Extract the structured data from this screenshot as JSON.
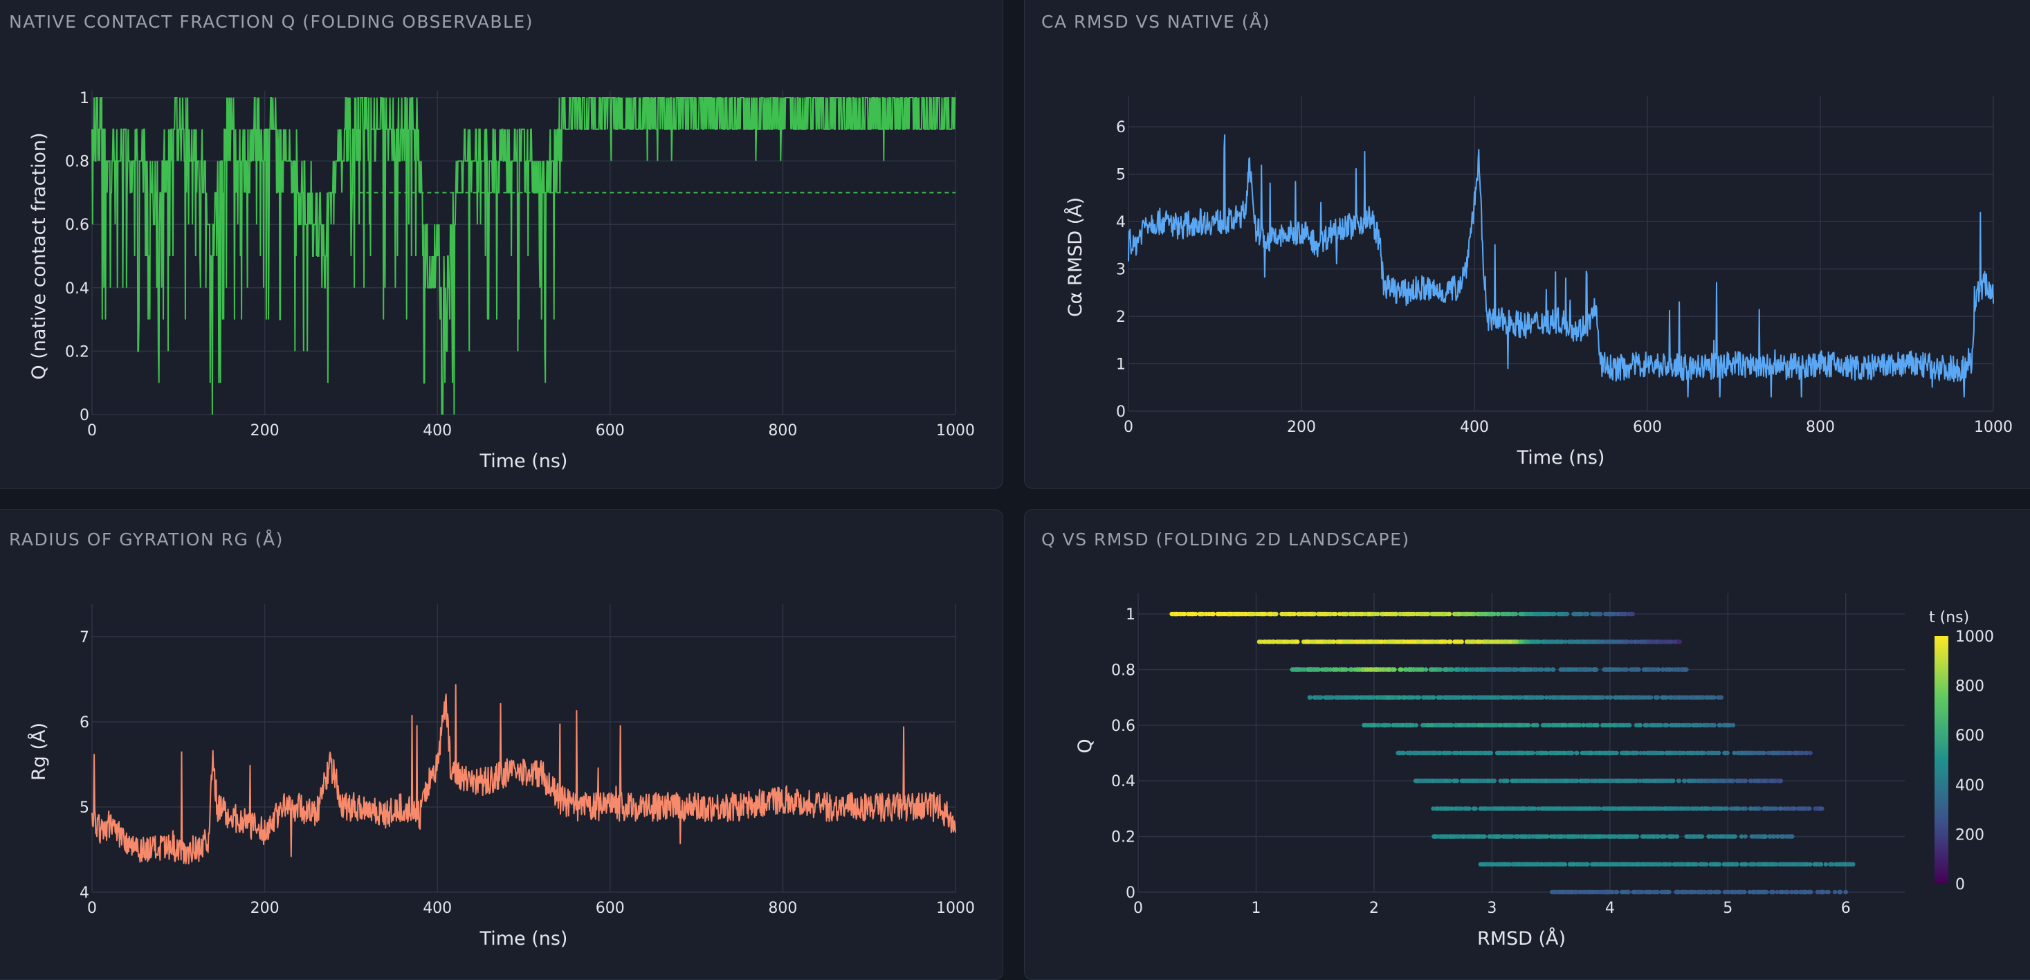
{
  "panels": {
    "q": {
      "title": "NATIVE CONTACT FRACTION Q (FOLDING OBSERVABLE)"
    },
    "rmsd": {
      "title": "CA RMSD VS NATIVE (Å)"
    },
    "rg": {
      "title": "RADIUS OF GYRATION RG (Å)"
    },
    "land": {
      "title": "Q VS RMSD (FOLDING 2D LANDSCAPE)"
    }
  },
  "colors": {
    "background": "#131720",
    "panel": "#1b1f2b",
    "q_series": "#3fbf4f",
    "rmsd_series": "#5aa8f5",
    "rg_series": "#f88a6c"
  },
  "chart_data": [
    {
      "type": "line",
      "panel": "q",
      "xlabel": "Time (ns)",
      "ylabel": "Q (native contact fraction)",
      "xlim": [
        0,
        1000
      ],
      "ylim": [
        0,
        1
      ],
      "xticks": [
        0,
        200,
        400,
        600,
        800,
        1000
      ],
      "yticks": [
        0,
        0.2,
        0.4,
        0.6,
        0.8,
        1
      ],
      "ytick_labels": [
        "0",
        "0.2",
        "0.4",
        "0.6",
        "0.8",
        "1"
      ],
      "grid": true,
      "threshold": 0.7,
      "x": [
        0,
        25,
        50,
        75,
        100,
        125,
        140,
        155,
        175,
        200,
        225,
        250,
        270,
        285,
        300,
        325,
        350,
        375,
        390,
        400,
        410,
        425,
        450,
        475,
        500,
        525,
        545,
        575,
        600,
        650,
        700,
        750,
        800,
        850,
        900,
        950,
        1000
      ],
      "values": [
        0.9,
        0.8,
        0.8,
        0.7,
        0.9,
        0.8,
        0.5,
        0.9,
        0.8,
        0.9,
        0.8,
        0.7,
        0.5,
        0.8,
        0.9,
        0.9,
        0.9,
        0.9,
        0.4,
        0.5,
        0.3,
        0.8,
        0.8,
        0.8,
        0.8,
        0.7,
        0.9,
        0.9,
        0.9,
        0.9,
        0.9,
        0.9,
        0.9,
        0.9,
        0.9,
        0.9,
        0.9
      ]
    },
    {
      "type": "line",
      "panel": "rmsd",
      "xlabel": "Time (ns)",
      "ylabel": "Cα RMSD (Å)",
      "xlim": [
        0,
        1000
      ],
      "ylim": [
        0,
        6.5
      ],
      "xticks": [
        0,
        200,
        400,
        600,
        800,
        1000
      ],
      "yticks": [
        0,
        1,
        2,
        3,
        4,
        5,
        6
      ],
      "grid": true,
      "x": [
        0,
        5,
        20,
        40,
        60,
        80,
        100,
        120,
        135,
        140,
        145,
        160,
        180,
        200,
        220,
        240,
        260,
        280,
        290,
        295,
        300,
        320,
        340,
        360,
        380,
        390,
        400,
        405,
        410,
        415,
        420,
        440,
        460,
        480,
        500,
        520,
        535,
        540,
        545,
        560,
        600,
        650,
        700,
        750,
        800,
        850,
        900,
        950,
        970,
        975,
        980,
        990,
        1000
      ],
      "values": [
        3.8,
        3.4,
        4.0,
        4.0,
        3.9,
        4.0,
        4.0,
        4.0,
        4.2,
        5.4,
        3.9,
        3.6,
        3.7,
        3.8,
        3.5,
        3.9,
        3.9,
        4.1,
        3.6,
        2.7,
        2.6,
        2.5,
        2.6,
        2.5,
        2.6,
        3.0,
        4.4,
        5.3,
        3.2,
        2.0,
        1.9,
        1.9,
        1.8,
        1.9,
        1.9,
        1.7,
        1.9,
        2.3,
        1.0,
        0.9,
        1.0,
        0.9,
        1.0,
        0.9,
        1.0,
        0.9,
        1.0,
        0.9,
        0.9,
        1.1,
        2.4,
        2.7,
        2.5
      ]
    },
    {
      "type": "line",
      "panel": "rg",
      "xlabel": "Time (ns)",
      "ylabel": "Rg (Å)",
      "xlim": [
        0,
        1000
      ],
      "ylim": [
        4,
        7.3
      ],
      "xticks": [
        0,
        200,
        400,
        600,
        800,
        1000
      ],
      "yticks": [
        4,
        5,
        6,
        7
      ],
      "grid": true,
      "x": [
        0,
        10,
        20,
        40,
        60,
        80,
        100,
        120,
        135,
        140,
        145,
        160,
        180,
        200,
        220,
        240,
        260,
        275,
        280,
        290,
        300,
        320,
        340,
        360,
        380,
        390,
        400,
        410,
        415,
        420,
        440,
        460,
        480,
        500,
        520,
        540,
        560,
        600,
        650,
        700,
        750,
        800,
        850,
        900,
        950,
        980,
        1000
      ],
      "values": [
        4.9,
        4.7,
        4.8,
        4.6,
        4.5,
        4.5,
        4.5,
        4.5,
        4.6,
        5.6,
        5.0,
        4.9,
        4.8,
        4.7,
        5.0,
        5.0,
        4.9,
        5.5,
        5.4,
        5.0,
        5.0,
        5.0,
        4.9,
        5.0,
        4.9,
        5.3,
        5.5,
        6.3,
        5.5,
        5.4,
        5.3,
        5.3,
        5.4,
        5.4,
        5.4,
        5.1,
        5.0,
        5.0,
        5.0,
        5.0,
        5.0,
        5.1,
        5.0,
        5.0,
        5.0,
        5.0,
        4.8
      ]
    },
    {
      "type": "scatter",
      "panel": "land",
      "xlabel": "RMSD (Å)",
      "ylabel": "Q",
      "xlim": [
        0,
        6.5
      ],
      "ylim": [
        0,
        1.05
      ],
      "xticks": [
        0,
        1,
        2,
        3,
        4,
        5,
        6
      ],
      "yticks": [
        0,
        0.2,
        0.4,
        0.6,
        0.8,
        1
      ],
      "ytick_labels": [
        "0",
        "0.2",
        "0.4",
        "0.6",
        "0.8",
        "1"
      ],
      "grid": true,
      "colorbar": {
        "title": "t (ns)",
        "range": [
          0,
          1000
        ],
        "ticks": [
          0,
          200,
          400,
          600,
          800,
          1000
        ]
      },
      "series": [
        {
          "q": 1.0,
          "rmsd_range": [
            0.28,
            4.2
          ],
          "t_color": [
            1000,
            900,
            750,
            520,
            340,
            200
          ],
          "stops": [
            0.0,
            0.6,
            0.67,
            0.78,
            0.9,
            1.0
          ]
        },
        {
          "q": 0.9,
          "rmsd_range": [
            1.0,
            4.6
          ],
          "t_color": [
            950,
            960,
            900,
            500,
            300,
            150
          ],
          "stops": [
            0.0,
            0.45,
            0.6,
            0.65,
            0.85,
            1.0
          ]
        },
        {
          "q": 0.8,
          "rmsd_range": [
            1.3,
            4.65
          ],
          "t_color": [
            600,
            700,
            850,
            420,
            340,
            300
          ],
          "stops": [
            0.0,
            0.15,
            0.2,
            0.5,
            0.8,
            1.0
          ]
        },
        {
          "q": 0.7,
          "rmsd_range": [
            1.45,
            4.95
          ],
          "t_color": [
            450,
            520,
            450,
            380,
            320
          ],
          "stops": [
            0.0,
            0.2,
            0.5,
            0.75,
            1.0
          ]
        },
        {
          "q": 0.6,
          "rmsd_range": [
            1.9,
            5.05
          ],
          "t_color": [
            520,
            540,
            520,
            450,
            360
          ],
          "stops": [
            0.0,
            0.3,
            0.6,
            0.8,
            1.0
          ]
        },
        {
          "q": 0.5,
          "rmsd_range": [
            2.2,
            5.7
          ],
          "t_color": [
            460,
            480,
            420,
            340,
            230
          ],
          "stops": [
            0.0,
            0.4,
            0.7,
            0.85,
            1.0
          ]
        },
        {
          "q": 0.4,
          "rmsd_range": [
            2.35,
            5.45
          ],
          "t_color": [
            450,
            460,
            420,
            300,
            230
          ],
          "stops": [
            0.0,
            0.4,
            0.7,
            0.85,
            1.0
          ]
        },
        {
          "q": 0.3,
          "rmsd_range": [
            2.5,
            5.8
          ],
          "t_color": [
            470,
            470,
            430,
            320,
            220
          ],
          "stops": [
            0.0,
            0.4,
            0.7,
            0.85,
            1.0
          ]
        },
        {
          "q": 0.2,
          "rmsd_range": [
            2.5,
            5.55
          ],
          "t_color": [
            480,
            480,
            430,
            330
          ],
          "stops": [
            0.0,
            0.5,
            0.8,
            1.0
          ]
        },
        {
          "q": 0.1,
          "rmsd_range": [
            2.9,
            6.1
          ],
          "t_color": [
            480,
            470,
            450,
            430
          ],
          "stops": [
            0.0,
            0.4,
            0.8,
            1.0
          ]
        },
        {
          "q": 0.0,
          "rmsd_range": [
            3.5,
            6.0
          ],
          "t_color": [
            280,
            300,
            280
          ],
          "stops": [
            0.0,
            0.5,
            1.0
          ]
        }
      ]
    }
  ]
}
